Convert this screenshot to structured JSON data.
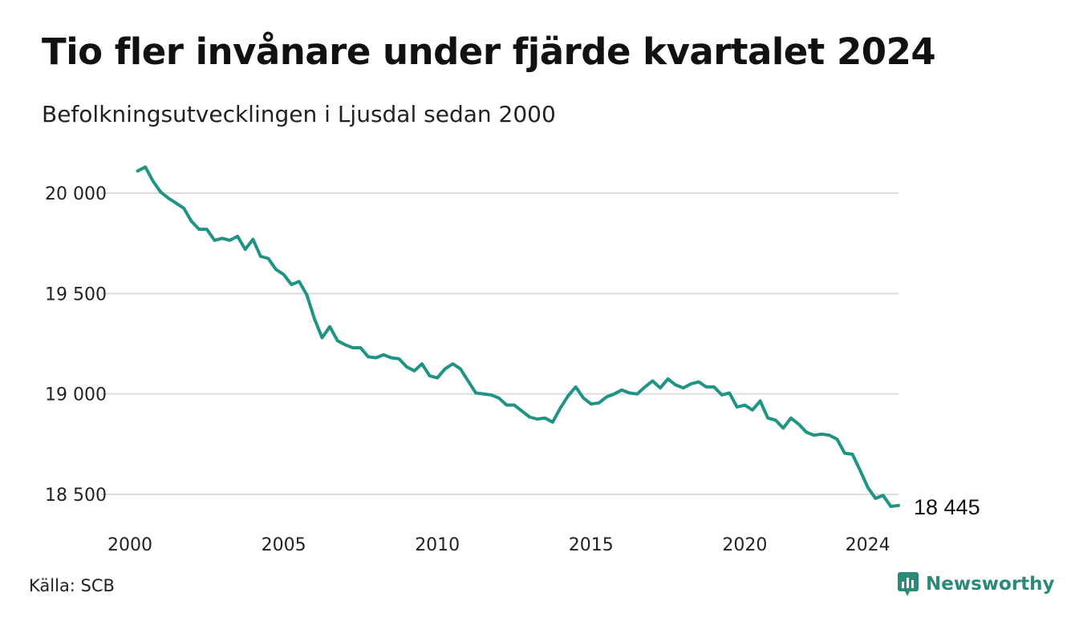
{
  "header": {
    "title": "Tio fler invånare under fjärde kvartalet 2024",
    "subtitle": "Befolkningsutvecklingen i Ljusdal sedan 2000"
  },
  "footer": {
    "source": "Källa: SCB",
    "brand": "Newsworthy"
  },
  "colors": {
    "line": "#1f9484",
    "grid": "#dcdcdc",
    "brand": "#2a8a78"
  },
  "chart_data": {
    "type": "line",
    "title": "Tio fler invånare under fjärde kvartalet 2024",
    "subtitle": "Befolkningsutvecklingen i Ljusdal sedan 2000",
    "xlabel": "",
    "ylabel": "",
    "xlim": [
      2000,
      2025
    ],
    "ylim": [
      18400,
      20200
    ],
    "x_ticks": [
      2000,
      2005,
      2010,
      2015,
      2020,
      2024
    ],
    "x_tick_labels": [
      "2000",
      "2005",
      "2010",
      "2015",
      "2020",
      "2024"
    ],
    "y_ticks": [
      18500,
      19000,
      19500,
      20000
    ],
    "y_tick_labels": [
      "18 500",
      "19 000",
      "19 500",
      "20 000"
    ],
    "grid": true,
    "end_label": "18 445",
    "series": [
      {
        "x": [
          2000.25,
          2000.5,
          2000.75,
          2001,
          2001.25,
          2001.5,
          2001.75,
          2002,
          2002.25,
          2002.5,
          2002.75,
          2003,
          2003.25,
          2003.5,
          2003.75,
          2004,
          2004.25,
          2004.5,
          2004.75,
          2005,
          2005.25,
          2005.5,
          2005.75,
          2006,
          2006.25,
          2006.5,
          2006.75,
          2007,
          2007.25,
          2007.5,
          2007.75,
          2008,
          2008.25,
          2008.5,
          2008.75,
          2009,
          2009.25,
          2009.5,
          2009.75,
          2010,
          2010.25,
          2010.5,
          2010.75,
          2011,
          2011.25,
          2011.5,
          2011.75,
          2012,
          2012.25,
          2012.5,
          2012.75,
          2013,
          2013.25,
          2013.5,
          2013.75,
          2014,
          2014.25,
          2014.5,
          2014.75,
          2015,
          2015.25,
          2015.5,
          2015.75,
          2016,
          2016.25,
          2016.5,
          2016.75,
          2017,
          2017.25,
          2017.5,
          2017.75,
          2018,
          2018.25,
          2018.5,
          2018.75,
          2019,
          2019.25,
          2019.5,
          2019.75,
          2020,
          2020.25,
          2020.5,
          2020.75,
          2021,
          2021.25,
          2021.5,
          2021.75,
          2022,
          2022.25,
          2022.5,
          2022.75,
          2023,
          2023.25,
          2023.5,
          2023.75,
          2024,
          2024.25,
          2024.5,
          2024.75,
          2025
        ],
        "values": [
          20110,
          20130,
          20060,
          20005,
          19975,
          19950,
          19925,
          19860,
          19820,
          19820,
          19765,
          19775,
          19765,
          19785,
          19720,
          19770,
          19685,
          19675,
          19620,
          19595,
          19545,
          19560,
          19495,
          19375,
          19280,
          19335,
          19265,
          19245,
          19230,
          19230,
          19185,
          19180,
          19195,
          19180,
          19175,
          19135,
          19115,
          19150,
          19090,
          19080,
          19125,
          19150,
          19125,
          19065,
          19005,
          19000,
          18995,
          18980,
          18945,
          18945,
          18915,
          18885,
          18875,
          18880,
          18860,
          18930,
          18990,
          19035,
          18980,
          18950,
          18955,
          18985,
          19000,
          19020,
          19005,
          19000,
          19035,
          19065,
          19030,
          19075,
          19045,
          19030,
          19050,
          19060,
          19035,
          19035,
          18995,
          19005,
          18935,
          18945,
          18920,
          18965,
          18880,
          18870,
          18830,
          18880,
          18850,
          18810,
          18795,
          18800,
          18795,
          18775,
          18705,
          18700,
          18620,
          18535,
          18480,
          18495,
          18440,
          18445
        ]
      }
    ]
  }
}
